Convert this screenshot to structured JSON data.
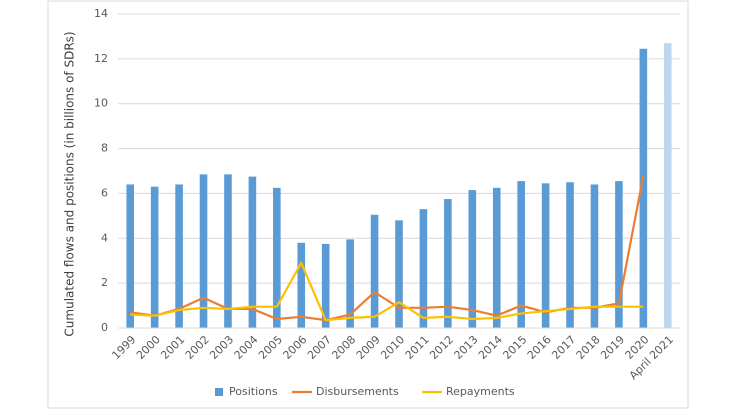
{
  "chart_data": {
    "type": "bar_line",
    "y_label": "Cumulated flows and positions (in billions of SDRs)",
    "categories": [
      "1999",
      "2000",
      "2001",
      "2002",
      "2003",
      "2004",
      "2005",
      "2006",
      "2007",
      "2008",
      "2009",
      "2010",
      "2011",
      "2012",
      "2013",
      "2014",
      "2015",
      "2016",
      "2017",
      "2018",
      "2019",
      "2020",
      "April 2021"
    ],
    "series": [
      {
        "name": "Positions",
        "kind": "bar",
        "color": "#5b9bd5",
        "colors": [
          "#5b9bd5",
          "#5b9bd5",
          "#5b9bd5",
          "#5b9bd5",
          "#5b9bd5",
          "#5b9bd5",
          "#5b9bd5",
          "#5b9bd5",
          "#5b9bd5",
          "#5b9bd5",
          "#5b9bd5",
          "#5b9bd5",
          "#5b9bd5",
          "#5b9bd5",
          "#5b9bd5",
          "#5b9bd5",
          "#5b9bd5",
          "#5b9bd5",
          "#5b9bd5",
          "#5b9bd5",
          "#5b9bd5",
          "#5b9bd5",
          "#bdd7ee"
        ],
        "values": [
          6.4,
          6.3,
          6.4,
          6.85,
          6.85,
          6.75,
          6.25,
          3.8,
          3.75,
          3.95,
          5.05,
          4.8,
          5.3,
          5.75,
          6.15,
          6.25,
          6.55,
          6.45,
          6.5,
          6.4,
          6.55,
          12.45,
          12.7
        ]
      },
      {
        "name": "Disbursements",
        "kind": "line",
        "color": "#ed7d31",
        "values": [
          0.7,
          0.55,
          0.85,
          1.35,
          0.85,
          0.85,
          0.4,
          0.5,
          0.35,
          0.6,
          1.6,
          0.9,
          0.9,
          0.95,
          0.8,
          0.55,
          1.0,
          0.7,
          0.9,
          0.9,
          1.1,
          6.8,
          null
        ]
      },
      {
        "name": "Repayments",
        "kind": "line",
        "color": "#ffc000",
        "values": [
          0.6,
          0.55,
          0.8,
          0.9,
          0.85,
          0.95,
          0.95,
          2.9,
          0.35,
          0.45,
          0.5,
          1.15,
          0.45,
          0.5,
          0.4,
          0.45,
          0.65,
          0.75,
          0.85,
          0.95,
          0.95,
          0.95,
          null
        ]
      }
    ],
    "ylim": [
      0,
      14
    ],
    "yticks": [
      0,
      2,
      4,
      6,
      8,
      10,
      12,
      14
    ],
    "grid": true,
    "legend": "bottom"
  }
}
